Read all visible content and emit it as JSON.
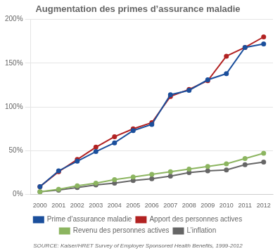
{
  "chart_data": {
    "type": "line",
    "title": "Augmentation des primes d’assurance maladie",
    "annotations": [
      "SOURCE: Kaiser/HRET Survey of Employer Sponsored Health Benefits, 1999-2012"
    ],
    "x": [
      2000,
      2001,
      2002,
      2003,
      2004,
      2005,
      2006,
      2007,
      2008,
      2009,
      2010,
      2011,
      2012
    ],
    "series": [
      {
        "name": "Prime d’assurance maladie",
        "color": "#1b4f9c",
        "marker": "circle",
        "values": [
          9,
          27,
          38,
          49,
          59,
          73,
          80,
          114,
          119,
          131,
          138,
          168,
          172
        ]
      },
      {
        "name": "Apport des personnes actives",
        "color": "#b22222",
        "marker": "circle",
        "values": [
          9,
          26,
          40,
          54,
          66,
          75,
          82,
          112,
          120,
          130,
          158,
          168,
          180
        ]
      },
      {
        "name": "Revenu des personnes actives",
        "color": "#8cb560",
        "marker": "circle",
        "values": [
          3,
          6,
          10,
          13,
          17,
          20,
          23,
          26,
          29,
          32,
          35,
          41,
          47
        ]
      },
      {
        "name": "L’inflation",
        "color": "#666666",
        "marker": "circle",
        "values": [
          3,
          5,
          8,
          11,
          13,
          16,
          18,
          21,
          25,
          27,
          28,
          34,
          37
        ]
      }
    ],
    "xlim": [
      1999.5,
      2012.5
    ],
    "xticks": [
      2000,
      2001,
      2002,
      2003,
      2004,
      2005,
      2006,
      2007,
      2008,
      2009,
      2010,
      2011,
      2012
    ],
    "ylim": [
      0,
      200
    ],
    "yticks": [
      {
        "value": 0,
        "label": "0%"
      },
      {
        "value": 50,
        "label": "50%"
      },
      {
        "value": 100,
        "label": "100%"
      },
      {
        "value": 150,
        "label": "150%"
      },
      {
        "value": 200,
        "label": "200%"
      }
    ],
    "grid": true,
    "legend": "bottom"
  }
}
